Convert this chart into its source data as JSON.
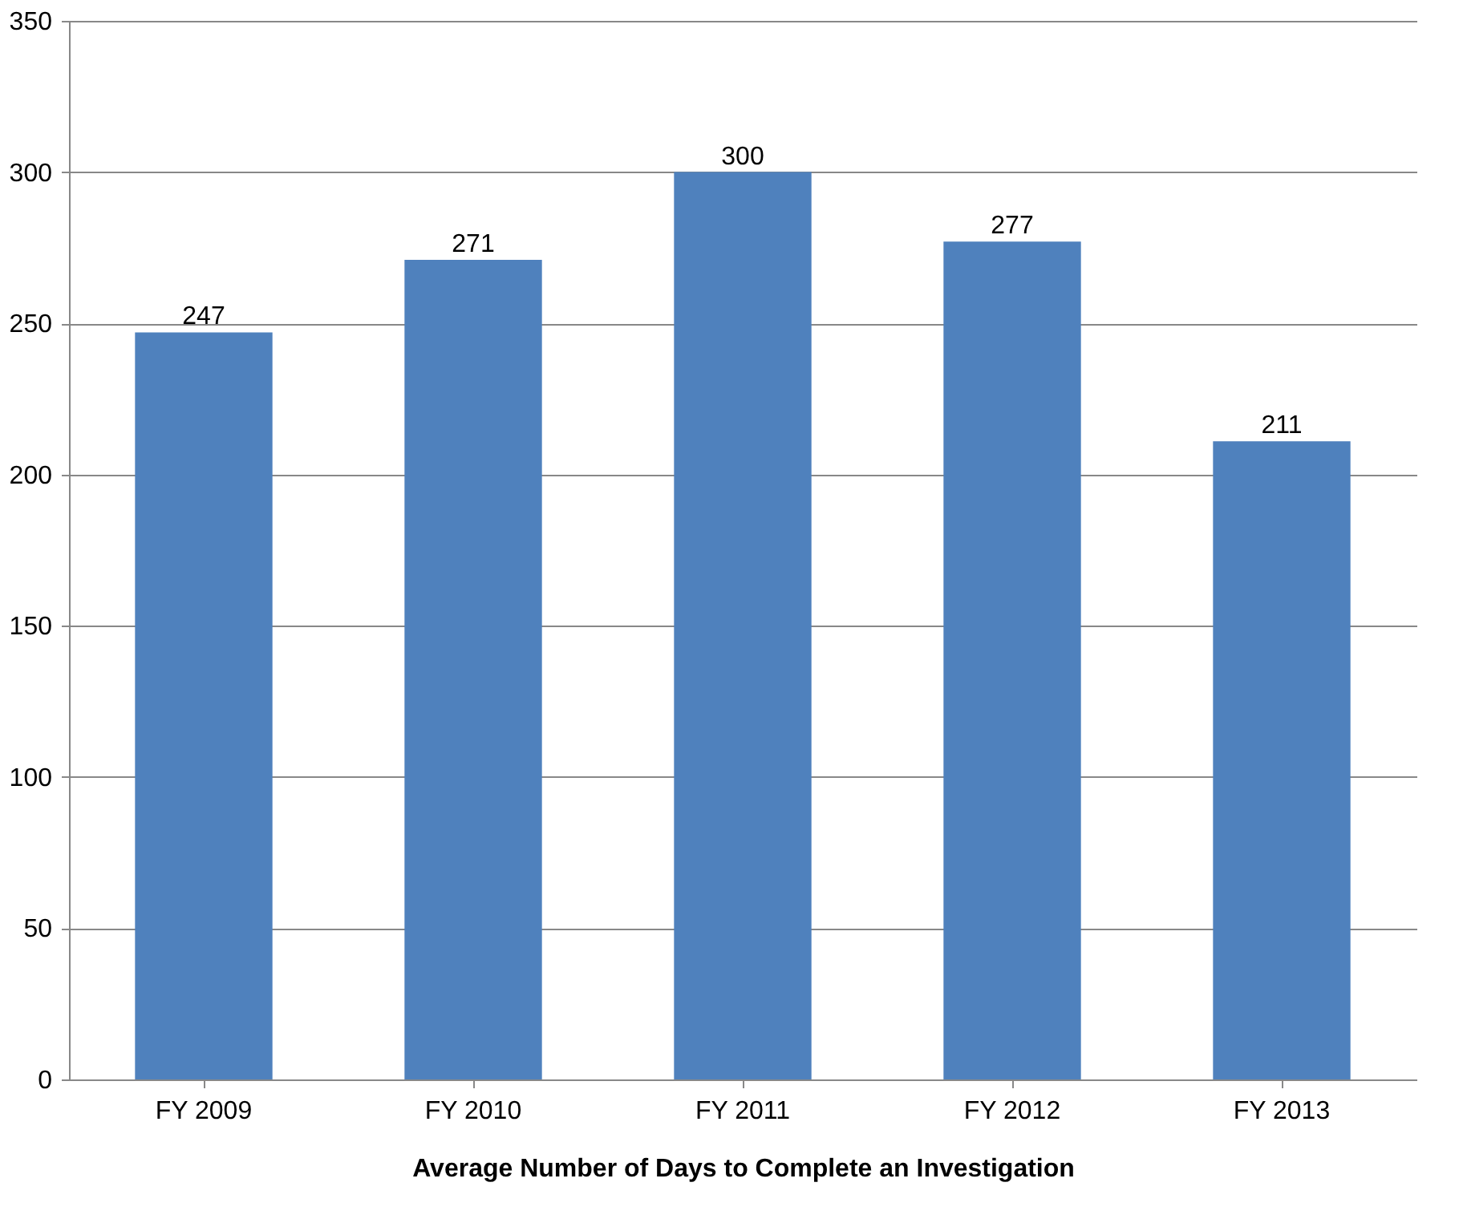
{
  "chart_data": {
    "type": "bar",
    "xlabel": "Average Number of Days to Complete an Investigation",
    "categories": [
      "FY 2009",
      "FY 2010",
      "FY 2011",
      "FY 2012",
      "FY 2013"
    ],
    "values": [
      247,
      271,
      300,
      277,
      211
    ],
    "color": "#4f81bd",
    "ylim": [
      0,
      350
    ],
    "yticks": [
      0,
      50,
      100,
      150,
      200,
      250,
      300,
      350
    ],
    "grid": "y",
    "data_labels": true
  }
}
